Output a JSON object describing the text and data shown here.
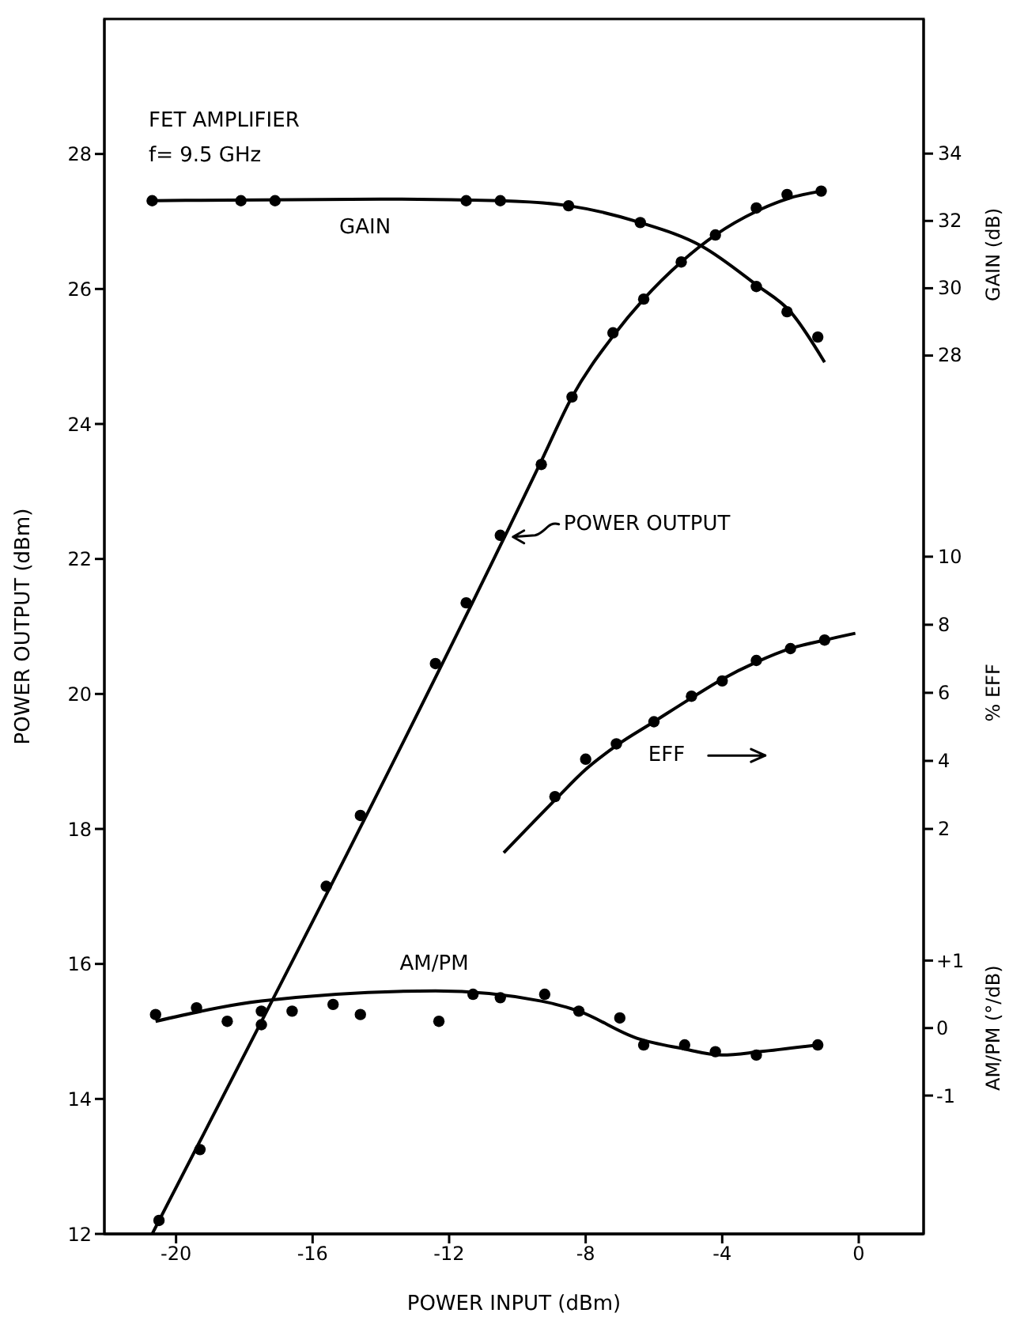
{
  "chart_data": [
    {
      "type": "scatter",
      "xlabel": "POWER INPUT (dBm)",
      "ylabel": "POWER OUTPUT (dBm)",
      "y2label": "GAIN (dB)",
      "y3label": "% EFF",
      "annotations": [
        "FET AMPLIFIER",
        "f= 9.5 GHz"
      ],
      "xlim": [
        -22.1,
        1.9
      ],
      "xticks": [
        -20,
        -16,
        -12,
        -8,
        -4,
        0
      ],
      "ylim": [
        12,
        30
      ],
      "yticks": [
        12,
        14,
        16,
        18,
        20,
        22,
        24,
        26,
        28
      ],
      "y2lim": [
        1.9,
        38
      ],
      "y2ticks": [
        28,
        30,
        32,
        34
      ],
      "y3lim": [
        -9.9,
        25.8
      ],
      "y3ticks": [
        2,
        4,
        6,
        8,
        10
      ],
      "series": [
        {
          "name": "GAIN",
          "axis": "y2",
          "marker": "circle",
          "color": "#000000",
          "x": [
            -20.7,
            -18.1,
            -17.1,
            -11.5,
            -10.5,
            -8.5,
            -6.4,
            -3.0,
            -2.1,
            -1.2
          ],
          "values": [
            32.6,
            32.6,
            32.6,
            32.6,
            32.6,
            32.45,
            31.95,
            30.05,
            29.3,
            28.55
          ]
        },
        {
          "type": "line",
          "axis": "y2",
          "marker": "none",
          "color": "#000000",
          "x": [
            -20.7,
            -14,
            -10.5,
            -8.5,
            -6.4,
            -4.6,
            -3,
            -2,
            -1
          ],
          "values": [
            32.6,
            32.65,
            32.6,
            32.45,
            31.95,
            31.25,
            30.1,
            29.3,
            27.8
          ]
        },
        {
          "name": "POWER OUTPUT",
          "marker": "circle",
          "color": "#000000",
          "x": [
            -20.5,
            -19.3,
            -15.6,
            -14.6,
            -12.4,
            -11.5,
            -10.5,
            -9.3,
            -8.4,
            -7.2,
            -6.3,
            -5.2,
            -4.2,
            -3.0,
            -2.1,
            -1.1
          ],
          "values": [
            12.2,
            13.25,
            17.15,
            18.2,
            20.45,
            21.35,
            22.35,
            23.4,
            24.4,
            25.35,
            25.85,
            26.4,
            26.8,
            27.2,
            27.4,
            27.45
          ]
        },
        {
          "type": "line",
          "marker": "none",
          "color": "#000000",
          "x": [
            -20.7,
            -9.3,
            -8.4,
            -7.2,
            -6.3,
            -5.2,
            -4.2,
            -3.0,
            -2.0,
            -1.1
          ],
          "values": [
            12.0,
            23.45,
            24.4,
            25.3,
            25.85,
            26.4,
            26.8,
            27.15,
            27.35,
            27.45
          ]
        },
        {
          "name": "EFF",
          "axis": "y3",
          "marker": "circle",
          "color": "#000000",
          "x": [
            -8.9,
            -8.0,
            -7.1,
            -6.0,
            -4.9,
            -4.0,
            -3.0,
            -2.0,
            -1.0
          ],
          "values": [
            2.95,
            4.05,
            4.5,
            5.15,
            5.9,
            6.35,
            6.95,
            7.3,
            7.55
          ]
        },
        {
          "type": "line",
          "axis": "y3",
          "marker": "none",
          "color": "#000000",
          "x": [
            -10.4,
            -8.9,
            -8.0,
            -7.1,
            -6.0,
            -4.9,
            -4.0,
            -3.0,
            -2.0,
            -1.0,
            -0.1
          ],
          "values": [
            1.3,
            2.85,
            3.75,
            4.45,
            5.15,
            5.85,
            6.4,
            6.9,
            7.3,
            7.55,
            7.75
          ]
        }
      ]
    },
    {
      "type": "scatter",
      "ylabel": "AM/PM (°/dB)",
      "tick_labels": "y",
      "xlim": [
        -22.1,
        1.9
      ],
      "ylim": [
        -3.05,
        14.95
      ],
      "yticks": [
        -1,
        0,
        {
          "value": 1,
          "label": "+1"
        }
      ],
      "series": [
        {
          "name": "AM/PM",
          "marker": "circle",
          "color": "#000000",
          "x": [
            -20.6,
            -19.4,
            -18.5,
            -17.5,
            -17.5,
            -16.6,
            -15.4,
            -14.6,
            -12.3,
            -11.3,
            -10.5,
            -9.2,
            -8.2,
            -7.0,
            -6.3,
            -5.1,
            -4.2,
            -3.0,
            -1.2
          ],
          "values": [
            0.2,
            0.3,
            0.1,
            0.25,
            0.05,
            0.25,
            0.35,
            0.2,
            0.1,
            0.5,
            0.45,
            0.5,
            0.25,
            0.15,
            -0.25,
            -0.25,
            -0.35,
            -0.4,
            -0.25
          ]
        },
        {
          "type": "line",
          "marker": "none",
          "color": "#000000",
          "x": [
            -20.6,
            -17.5,
            -12.4,
            -9.3,
            -8.2,
            -6.5,
            -5.2,
            -4.0,
            -2.9,
            -1.2
          ],
          "values": [
            0.1,
            0.4,
            0.55,
            0.4,
            0.25,
            -0.15,
            -0.3,
            -0.4,
            -0.35,
            -0.25
          ]
        }
      ]
    }
  ]
}
